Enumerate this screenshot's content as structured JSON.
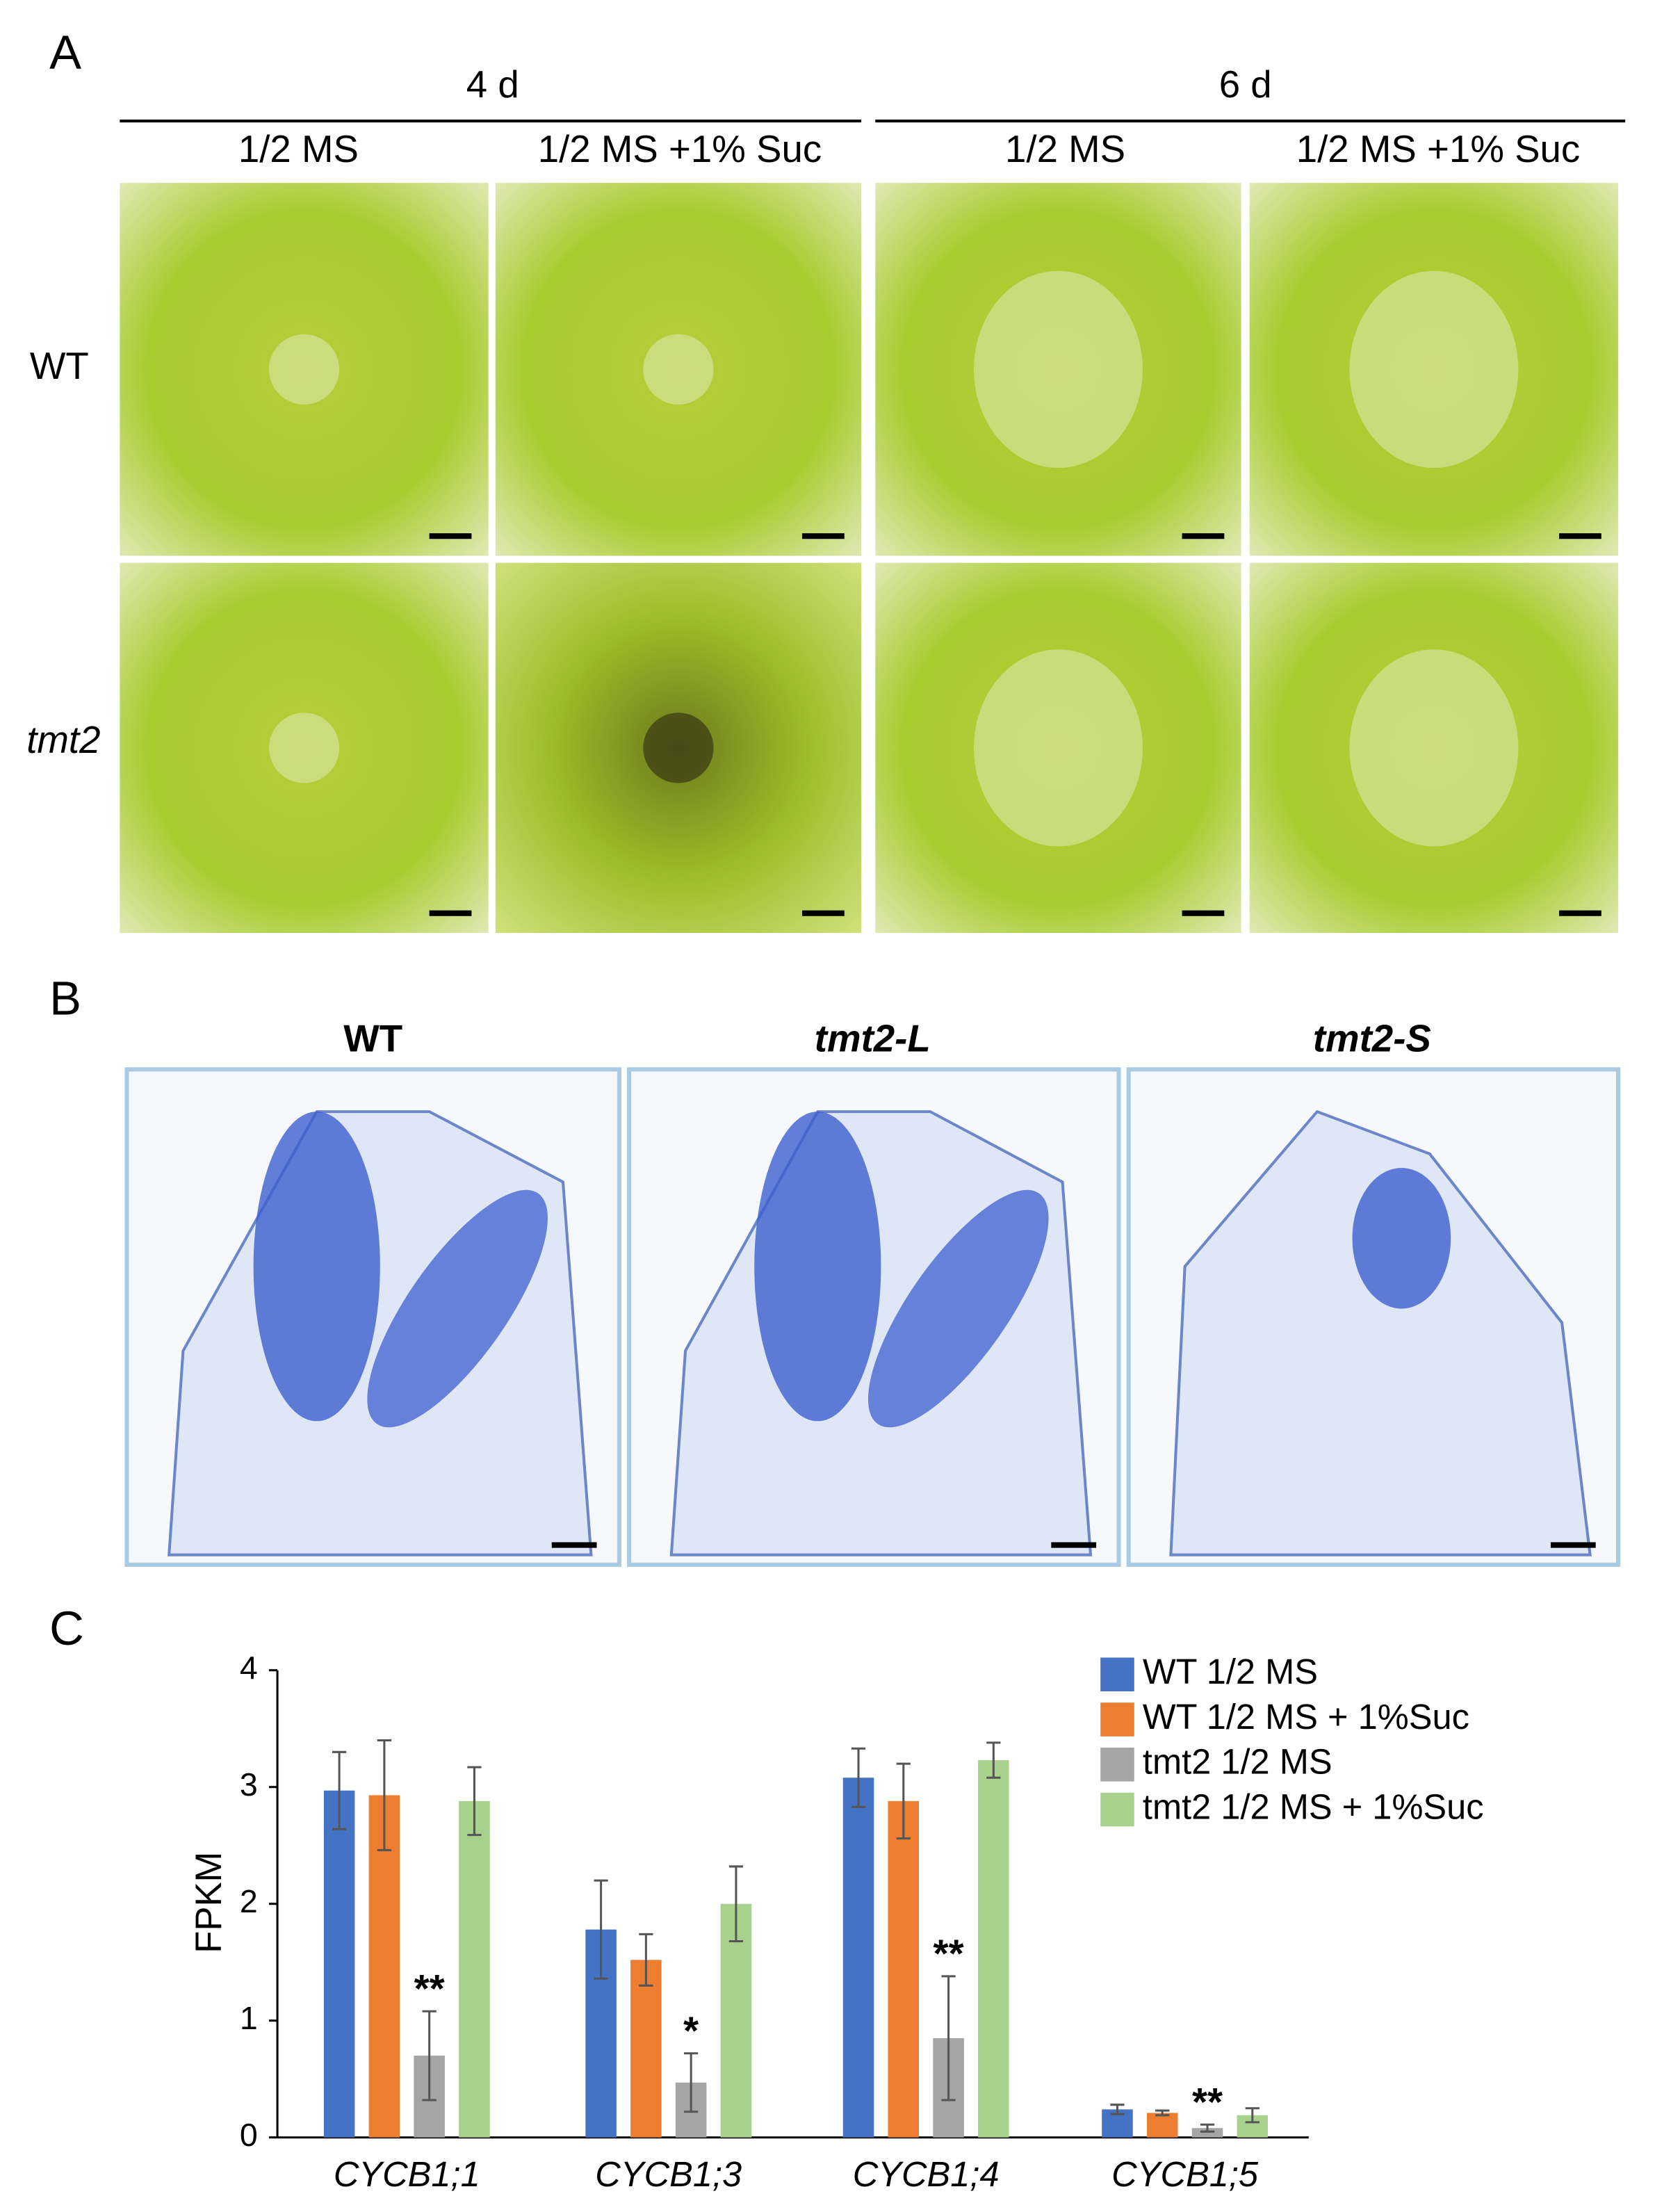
{
  "panel_a": {
    "label": "A",
    "groups": [
      "4 d",
      "6 d"
    ],
    "conditions": [
      "1/2 MS",
      "1/2 MS +1% Suc",
      "1/2 MS",
      "1/2 MS +1% Suc"
    ],
    "rows": [
      "WT",
      "tmt2"
    ]
  },
  "panel_b": {
    "label": "B",
    "titles": [
      "WT",
      "tmt2-L",
      "tmt2-S"
    ]
  },
  "panel_c": {
    "label": "C"
  },
  "chart_data": {
    "type": "bar",
    "ylabel": "FPKM",
    "categories": [
      "CYCB1;1",
      "CYCB1;3",
      "CYCB1;4",
      "CYCB1;5"
    ],
    "ylim": [
      0,
      4
    ],
    "yticks": [
      0,
      1,
      2,
      3,
      4
    ],
    "legend": "upper right",
    "series": [
      {
        "name": "WT 1/2 MS",
        "color": "#4472c4",
        "values": [
          2.97,
          1.78,
          3.08,
          0.24
        ],
        "errors": [
          0.33,
          0.42,
          0.25,
          0.04
        ]
      },
      {
        "name": "WT 1/2 MS + 1%Suc",
        "color": "#ed7d31",
        "values": [
          2.93,
          1.52,
          2.88,
          0.21
        ],
        "errors": [
          0.47,
          0.22,
          0.32,
          0.02
        ]
      },
      {
        "name": "tmt2 1/2 MS",
        "color": "#a5a5a5",
        "values": [
          0.7,
          0.47,
          0.85,
          0.08
        ],
        "errors": [
          0.38,
          0.25,
          0.53,
          0.03
        ],
        "significance": [
          "**",
          "*",
          "**",
          "**"
        ]
      },
      {
        "name": "tmt2 1/2 MS + 1%Suc",
        "color": "#a9d18e",
        "values": [
          2.88,
          2.0,
          3.23,
          0.19
        ],
        "errors": [
          0.29,
          0.32,
          0.15,
          0.06
        ]
      }
    ]
  }
}
